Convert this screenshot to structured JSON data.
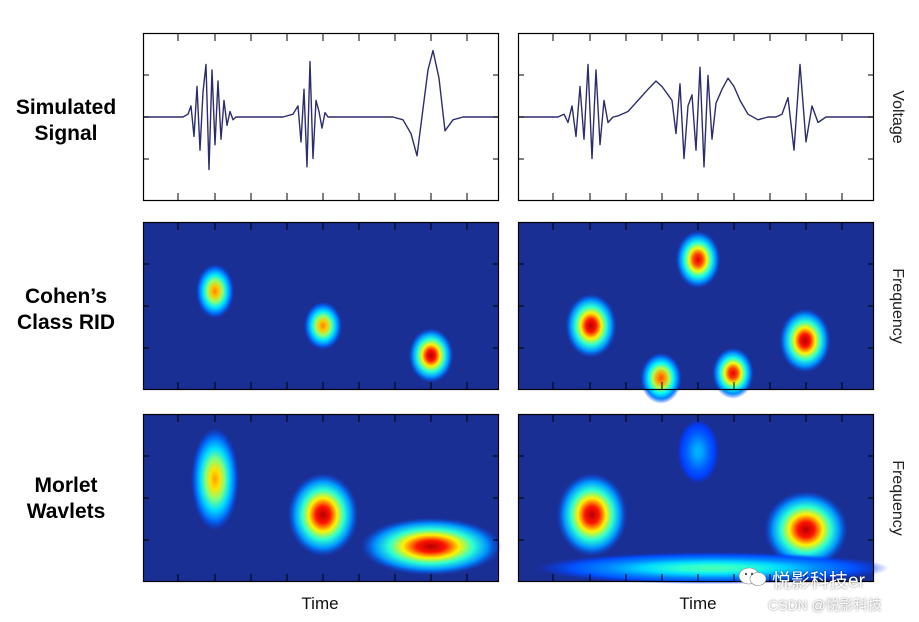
{
  "rows": [
    {
      "line1": "Simulated",
      "line2": "Signal"
    },
    {
      "line1": "Cohen’s",
      "line2": "Class RID"
    },
    {
      "line1": "Morlet",
      "line2": "Wavlets"
    }
  ],
  "side_labels": [
    "Voltage",
    "Frequency",
    "Frequency"
  ],
  "xlabel": "Time",
  "watermark": {
    "line1": "悦影科技er",
    "line2": "CSDN @悦影科技"
  },
  "colors": {
    "signal": "#2b2d6e",
    "background": "#1a2f94",
    "axis": "#000000"
  },
  "chart_data": [
    {
      "type": "line",
      "panel": "signal-left",
      "xlabel": "",
      "ylabel": "Voltage",
      "x": [
        0,
        10,
        20,
        30,
        40,
        45,
        48,
        51,
        54,
        57,
        60,
        63,
        66,
        69,
        72,
        75,
        78,
        81,
        84,
        87,
        90,
        93,
        96,
        99,
        102,
        105,
        110,
        120,
        130,
        140,
        150,
        155,
        158,
        161,
        164,
        167,
        170,
        173,
        176,
        179,
        182,
        185,
        190,
        200,
        210,
        230,
        250,
        260,
        268,
        274,
        280,
        285,
        290,
        296,
        302,
        310,
        320,
        330,
        356
      ],
      "y": [
        0,
        0,
        0,
        0,
        0,
        0.05,
        0.2,
        -0.35,
        0.55,
        -0.6,
        0.45,
        0.95,
        -0.95,
        0.85,
        -0.5,
        0.65,
        -0.4,
        0.3,
        -0.15,
        0.1,
        -0.05,
        0,
        0,
        0,
        0,
        0,
        0,
        0,
        0,
        0,
        0.05,
        0.2,
        -0.45,
        0.5,
        -0.9,
        1.0,
        -0.75,
        0.3,
        0.1,
        -0.2,
        0.08,
        0,
        0,
        0,
        0,
        0,
        0,
        -0.05,
        -0.3,
        -0.7,
        0.15,
        0.85,
        1.2,
        0.7,
        -0.25,
        -0.05,
        0,
        0,
        0
      ],
      "xlim": [
        0,
        356
      ],
      "ylim": [
        -1.3,
        1.3
      ]
    },
    {
      "type": "line",
      "panel": "signal-right",
      "xlabel": "",
      "ylabel": "Voltage",
      "x": [
        0,
        20,
        40,
        46,
        50,
        54,
        58,
        62,
        66,
        70,
        74,
        78,
        82,
        86,
        90,
        95,
        100,
        110,
        120,
        130,
        138,
        144,
        150,
        154,
        158,
        162,
        166,
        170,
        174,
        178,
        182,
        186,
        190,
        194,
        198,
        204,
        210,
        216,
        222,
        230,
        240,
        250,
        258,
        264,
        270,
        276,
        282,
        288,
        294,
        300,
        308,
        320,
        340,
        356
      ],
      "y": [
        0,
        0,
        0,
        0.05,
        -0.1,
        0.2,
        -0.35,
        0.55,
        -0.4,
        0.95,
        -0.75,
        0.85,
        -0.5,
        0.3,
        -0.1,
        0,
        0.02,
        0.1,
        0.3,
        0.5,
        0.65,
        0.55,
        0.4,
        0.3,
        -0.3,
        0.6,
        -0.75,
        0.2,
        0.4,
        -0.6,
        0.9,
        -0.9,
        0.75,
        -0.4,
        0.25,
        0.5,
        0.7,
        0.55,
        0.3,
        0.05,
        -0.05,
        0,
        0,
        0.05,
        0.35,
        -0.6,
        0.95,
        -0.45,
        0.2,
        -0.1,
        0,
        0,
        0,
        0
      ],
      "xlim": [
        0,
        356
      ],
      "ylim": [
        -1.3,
        1.3
      ]
    },
    {
      "type": "heatmap",
      "panel": "cohen-left",
      "xlabel": "",
      "ylabel": "Frequency",
      "xlim": [
        0,
        356
      ],
      "ylim": [
        0,
        170
      ],
      "points": [
        {
          "x": 72,
          "y": 100,
          "rx": 12,
          "ry": 17,
          "peak": 0.75
        },
        {
          "x": 180,
          "y": 65,
          "rx": 12,
          "ry": 15,
          "peak": 0.75
        },
        {
          "x": 288,
          "y": 35,
          "rx": 14,
          "ry": 17,
          "peak": 0.95
        }
      ]
    },
    {
      "type": "heatmap",
      "panel": "cohen-right",
      "xlabel": "",
      "ylabel": "Frequency",
      "xlim": [
        0,
        356
      ],
      "ylim": [
        0,
        170
      ],
      "points": [
        {
          "x": 73,
          "y": 65,
          "rx": 16,
          "ry": 20,
          "peak": 0.95
        },
        {
          "x": 180,
          "y": 132,
          "rx": 14,
          "ry": 18,
          "peak": 0.9
        },
        {
          "x": 143,
          "y": 12,
          "rx": 13,
          "ry": 16,
          "peak": 0.8
        },
        {
          "x": 215,
          "y": 17,
          "rx": 13,
          "ry": 16,
          "peak": 0.9
        },
        {
          "x": 287,
          "y": 50,
          "rx": 16,
          "ry": 20,
          "peak": 0.95
        }
      ]
    },
    {
      "type": "heatmap",
      "panel": "morlet-left",
      "xlabel": "Time",
      "ylabel": "",
      "xlim": [
        0,
        356
      ],
      "ylim": [
        0,
        170
      ],
      "points": [
        {
          "x": 72,
          "y": 104,
          "rx": 15,
          "ry": 32,
          "peak": 0.72
        },
        {
          "x": 180,
          "y": 68,
          "rx": 22,
          "ry": 26,
          "peak": 0.95
        },
        {
          "x": 288,
          "y": 36,
          "rx": 44,
          "ry": 18,
          "peak": 0.95
        }
      ]
    },
    {
      "type": "heatmap",
      "panel": "morlet-right",
      "xlabel": "Time",
      "ylabel": "Frequency",
      "xlim": [
        0,
        356
      ],
      "ylim": [
        0,
        170
      ],
      "points": [
        {
          "x": 74,
          "y": 68,
          "rx": 22,
          "ry": 26,
          "peak": 0.95
        },
        {
          "x": 180,
          "y": 132,
          "rx": 13,
          "ry": 20,
          "peak": 0.3
        },
        {
          "x": 288,
          "y": 53,
          "rx": 26,
          "ry": 24,
          "peak": 0.95
        },
        {
          "x": 195,
          "y": 14,
          "rx": 110,
          "ry": 10,
          "peak": 0.45
        }
      ]
    }
  ]
}
